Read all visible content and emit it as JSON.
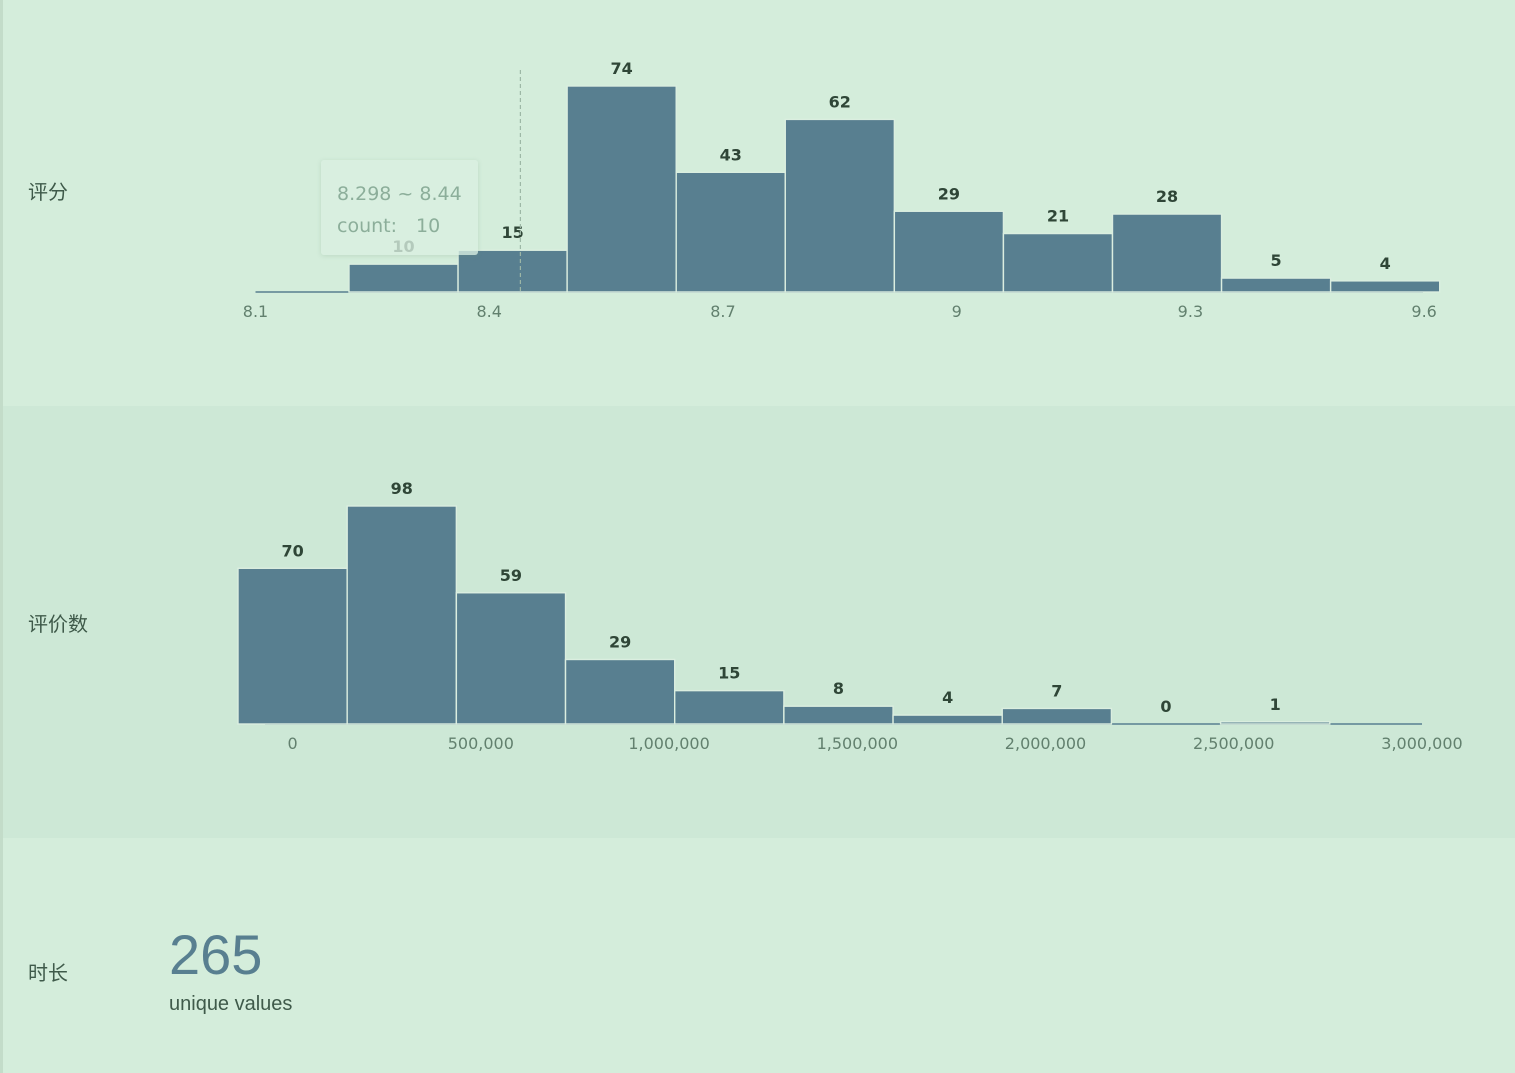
{
  "rows": [
    {
      "label": "评分"
    },
    {
      "label": "评价数"
    },
    {
      "label": "时长",
      "unique_count": "265",
      "unique_caption": "unique values"
    }
  ],
  "tooltip": {
    "range": "8.298 ~ 8.44",
    "count_label": "count:",
    "count_value": "10"
  },
  "colors": {
    "bar": "#587f90",
    "background": "#d4eddb",
    "background_alt": "#cde8d6"
  },
  "chart_data": [
    {
      "type": "bar",
      "name": "评分",
      "bin_width": 0.14,
      "bins": [
        {
          "x0": 8.22,
          "x1": 8.36,
          "value": 10
        },
        {
          "x0": 8.36,
          "x1": 8.5,
          "value": 15
        },
        {
          "x0": 8.5,
          "x1": 8.64,
          "value": 74
        },
        {
          "x0": 8.64,
          "x1": 8.78,
          "value": 43
        },
        {
          "x0": 8.78,
          "x1": 8.92,
          "value": 62
        },
        {
          "x0": 8.92,
          "x1": 9.06,
          "value": 29
        },
        {
          "x0": 9.06,
          "x1": 9.2,
          "value": 21
        },
        {
          "x0": 9.2,
          "x1": 9.34,
          "value": 28
        },
        {
          "x0": 9.34,
          "x1": 9.48,
          "value": 5
        },
        {
          "x0": 9.48,
          "x1": 9.62,
          "value": 4
        }
      ],
      "ticks": [
        "8.1",
        "8.4",
        "8.7",
        "9",
        "9.3",
        "9.6"
      ],
      "tick_values": [
        8.1,
        8.4,
        8.7,
        9,
        9.3,
        9.6
      ],
      "xlim": [
        8.1,
        9.63
      ],
      "ylim": [
        0,
        74
      ],
      "hover_marker": 8.44,
      "grid": false
    },
    {
      "type": "bar",
      "name": "评价数",
      "bins": [
        {
          "x0": -145000,
          "x1": 145000,
          "value": 70
        },
        {
          "x0": 145000,
          "x1": 435000,
          "value": 98
        },
        {
          "x0": 435000,
          "x1": 725000,
          "value": 59
        },
        {
          "x0": 725000,
          "x1": 1015000,
          "value": 29
        },
        {
          "x0": 1015000,
          "x1": 1305000,
          "value": 15
        },
        {
          "x0": 1305000,
          "x1": 1595000,
          "value": 8
        },
        {
          "x0": 1595000,
          "x1": 1885000,
          "value": 4
        },
        {
          "x0": 1885000,
          "x1": 2175000,
          "value": 7
        },
        {
          "x0": 2175000,
          "x1": 2465000,
          "value": 0
        },
        {
          "x0": 2465000,
          "x1": 2755000,
          "value": 1
        }
      ],
      "ticks": [
        "0",
        "500,000",
        "1,000,000",
        "1,500,000",
        "2,000,000",
        "2,500,000",
        "3,000,000"
      ],
      "tick_values": [
        0,
        500000,
        1000000,
        1500000,
        2000000,
        2500000,
        3000000
      ],
      "xlim": [
        -145000,
        3000000
      ],
      "ylim": [
        0,
        98
      ],
      "grid": false
    }
  ]
}
